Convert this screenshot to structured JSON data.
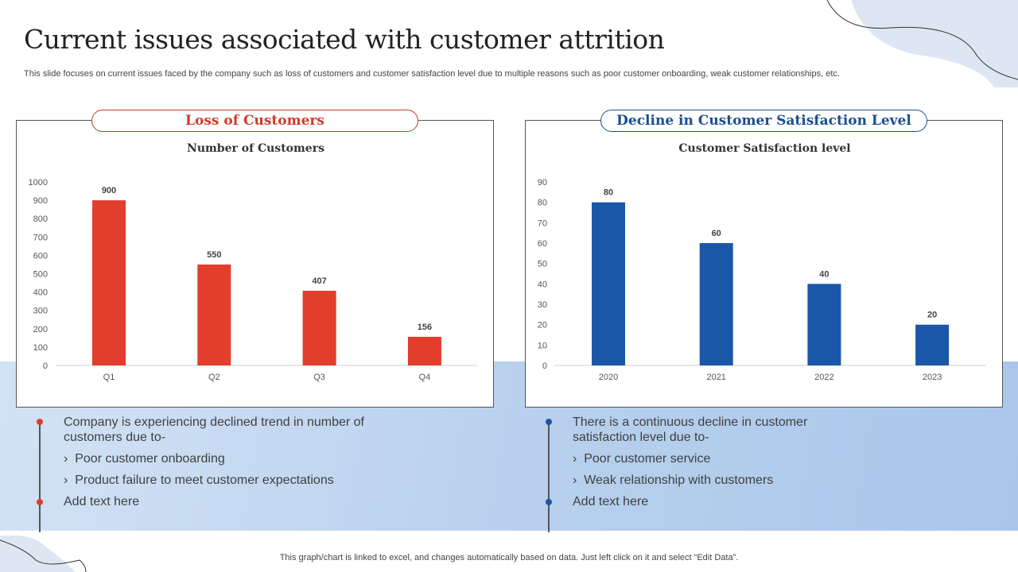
{
  "title": "Current issues associated with customer attrition",
  "subtitle": "This slide focuses on current issues faced by the company such as loss of customers and customer satisfaction level due to multiple reasons such as poor customer onboarding, weak customer relationships, etc.",
  "left": {
    "heading": "Loss of Customers",
    "color": "#e03c2c",
    "bullet_main": "Company is experiencing declined trend in number of customers due to-",
    "subs": [
      "Poor customer onboarding",
      "Product failure to meet customer expectations"
    ],
    "bullet_add": "Add text here"
  },
  "right": {
    "heading": "Decline in Customer Satisfaction Level",
    "color": "#1a57a8",
    "bullet_main": "There is a continuous  decline in customer satisfaction level due to-",
    "subs": [
      "Poor customer service",
      "Weak relationship with customers"
    ],
    "bullet_add": "Add text here"
  },
  "chart_data": [
    {
      "type": "bar",
      "title": "Number of Customers",
      "categories": [
        "Q1",
        "Q2",
        "Q3",
        "Q4"
      ],
      "values": [
        900,
        550,
        407,
        156
      ],
      "ylim": [
        0,
        1000
      ],
      "yticks": [
        0,
        100,
        200,
        300,
        400,
        500,
        600,
        700,
        800,
        900,
        1000
      ],
      "color": "#e23d2d",
      "data_labels": true,
      "grid": false
    },
    {
      "type": "bar",
      "title": "Customer Satisfaction level",
      "categories": [
        "2020",
        "2021",
        "2022",
        "2023"
      ],
      "values": [
        80,
        60,
        40,
        20
      ],
      "ylim": [
        0,
        90
      ],
      "yticks": [
        0,
        10,
        20,
        30,
        40,
        50,
        60,
        70,
        80,
        90
      ],
      "color": "#1a57a8",
      "data_labels": true,
      "grid": false
    }
  ],
  "footer": "This graph/chart is linked to excel,  and changes automatically based on data. Just left click on it and select “Edit Data”."
}
